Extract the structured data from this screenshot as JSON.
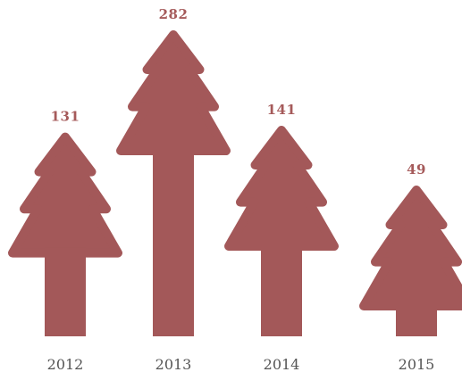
{
  "chart_data": {
    "type": "bar",
    "categories": [
      "2012",
      "2013",
      "2014",
      "2015"
    ],
    "values": [
      131,
      282,
      141,
      49
    ],
    "marker": "tree-icon",
    "value_label_color": "#a55a5a",
    "bar_color": "#a35859",
    "category_label_color": "#555555",
    "grid": false,
    "legend": "none"
  }
}
